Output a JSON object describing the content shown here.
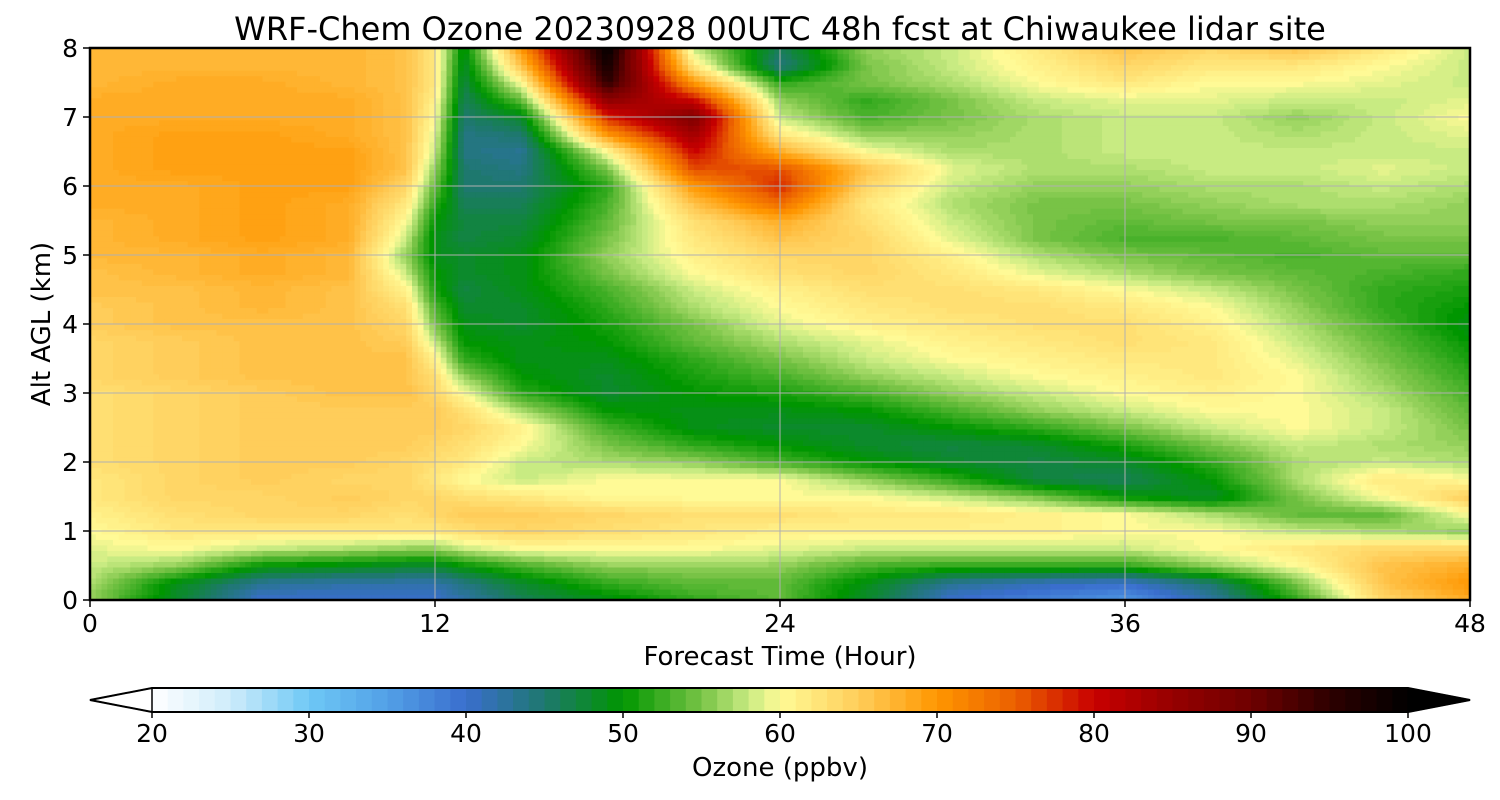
{
  "chart_data": {
    "type": "heatmap",
    "title": "WRF-Chem Ozone  20230928 00UTC 48h fcst at Chiwaukee lidar site",
    "xlabel": "Forecast Time (Hour)",
    "ylabel": "Alt AGL (km)",
    "xlim": [
      0,
      48
    ],
    "ylim": [
      0,
      8
    ],
    "xticks": [
      "0",
      "12",
      "24",
      "36",
      "48"
    ],
    "yticks": [
      "0",
      "1",
      "2",
      "3",
      "4",
      "5",
      "6",
      "7",
      "8"
    ],
    "grid": true,
    "x_hours": [
      0,
      3,
      6,
      9,
      11,
      12,
      13,
      15,
      18,
      21,
      24,
      27,
      30,
      33,
      36,
      39,
      42,
      45,
      48
    ],
    "y_km": [
      0,
      0.25,
      0.5,
      0.75,
      1,
      1.25,
      1.5,
      1.75,
      2,
      2.25,
      2.5,
      2.75,
      3,
      3.25,
      3.5,
      3.75,
      4,
      4.25,
      4.5,
      4.75,
      5,
      5.25,
      5.5,
      5.75,
      6,
      6.25,
      6.5,
      6.75,
      7,
      7.25,
      7.5,
      7.75,
      8
    ],
    "ozone_ppbv": [
      [
        56,
        48,
        40,
        40,
        40,
        40,
        42,
        46,
        49,
        52,
        54,
        48,
        40,
        38,
        36,
        42,
        52,
        64,
        68
      ],
      [
        57,
        49,
        43,
        42,
        42,
        42,
        44,
        48,
        52,
        54,
        54,
        49,
        43,
        41,
        40,
        45,
        55,
        66,
        70
      ],
      [
        58,
        56,
        50,
        49,
        48,
        48,
        50,
        53,
        56,
        56,
        56,
        53,
        52,
        52,
        52,
        56,
        60,
        66,
        68
      ],
      [
        59,
        60,
        58,
        57,
        56,
        56,
        58,
        60,
        60,
        60,
        59,
        58,
        58,
        58,
        58,
        60,
        62,
        64,
        64
      ],
      [
        60,
        62,
        62,
        62,
        62,
        62,
        63,
        64,
        63,
        62,
        61,
        61,
        61,
        61,
        60,
        60,
        58,
        57,
        56
      ],
      [
        61,
        63,
        64,
        64,
        63,
        64,
        65,
        65,
        64,
        63,
        63,
        62,
        62,
        61,
        60,
        57,
        54,
        54,
        60
      ],
      [
        62,
        64,
        64,
        65,
        64,
        64,
        63,
        62,
        60,
        60,
        60,
        60,
        58,
        55,
        50,
        48,
        55,
        60,
        65
      ],
      [
        62,
        64,
        65,
        64,
        64,
        62,
        60,
        58,
        60,
        60,
        60,
        56,
        52,
        47,
        46,
        50,
        57,
        62,
        60
      ],
      [
        63,
        64,
        65,
        65,
        64,
        63,
        62,
        58,
        57,
        56,
        53,
        50,
        48,
        47,
        48,
        52,
        57,
        58,
        57
      ],
      [
        63,
        64,
        65,
        65,
        65,
        64,
        63,
        60,
        55,
        52,
        50,
        48,
        47,
        48,
        51,
        55,
        58,
        57,
        56
      ],
      [
        63,
        64,
        65,
        65,
        65,
        65,
        64,
        61,
        53,
        49,
        48,
        48,
        50,
        52,
        55,
        58,
        60,
        58,
        55
      ],
      [
        63,
        64,
        65,
        65,
        65,
        65,
        63,
        57,
        50,
        49,
        49,
        50,
        53,
        56,
        58,
        60,
        60,
        58,
        54
      ],
      [
        63,
        64,
        65,
        66,
        66,
        64,
        60,
        52,
        48,
        50,
        51,
        53,
        56,
        58,
        60,
        61,
        60,
        57,
        53
      ],
      [
        64,
        65,
        66,
        66,
        66,
        63,
        56,
        50,
        48,
        51,
        53,
        56,
        58,
        60,
        61,
        62,
        60,
        56,
        52
      ],
      [
        64,
        65,
        66,
        66,
        66,
        61,
        52,
        49,
        49,
        52,
        55,
        58,
        60,
        61,
        62,
        62,
        59,
        55,
        51
      ],
      [
        64,
        65,
        66,
        66,
        65,
        58,
        50,
        49,
        50,
        54,
        57,
        59,
        61,
        62,
        63,
        62,
        58,
        54,
        50
      ],
      [
        65,
        66,
        66,
        66,
        64,
        55,
        49,
        48,
        51,
        55,
        59,
        61,
        62,
        63,
        63,
        61,
        57,
        53,
        49
      ],
      [
        65,
        66,
        67,
        66,
        63,
        53,
        48,
        48,
        52,
        57,
        60,
        62,
        63,
        63,
        62,
        60,
        56,
        52,
        50
      ],
      [
        66,
        66,
        67,
        66,
        61,
        51,
        47,
        49,
        53,
        58,
        61,
        63,
        63,
        62,
        60,
        58,
        55,
        52,
        51
      ],
      [
        66,
        67,
        68,
        67,
        58,
        50,
        48,
        49,
        55,
        60,
        63,
        64,
        62,
        59,
        57,
        55,
        54,
        53,
        52
      ],
      [
        67,
        67,
        68,
        67,
        56,
        49,
        48,
        49,
        56,
        61,
        64,
        64,
        61,
        57,
        55,
        54,
        53,
        54,
        54
      ],
      [
        67,
        68,
        69,
        68,
        58,
        49,
        47,
        48,
        55,
        62,
        66,
        64,
        59,
        55,
        53,
        53,
        54,
        55,
        55
      ],
      [
        67,
        68,
        69,
        68,
        60,
        50,
        47,
        47,
        54,
        63,
        68,
        63,
        58,
        55,
        54,
        55,
        55,
        56,
        56
      ],
      [
        68,
        68,
        69,
        68,
        62,
        52,
        46,
        46,
        53,
        66,
        74,
        62,
        57,
        55,
        55,
        56,
        57,
        57,
        56
      ],
      [
        68,
        68,
        69,
        69,
        64,
        54,
        45,
        45,
        52,
        70,
        78,
        64,
        58,
        56,
        56,
        57,
        57,
        58,
        57
      ],
      [
        68,
        69,
        69,
        69,
        66,
        56,
        45,
        44,
        55,
        76,
        76,
        66,
        59,
        57,
        57,
        58,
        58,
        59,
        58
      ],
      [
        68,
        69,
        69,
        69,
        66,
        58,
        44,
        43,
        60,
        80,
        68,
        60,
        57,
        57,
        58,
        58,
        58,
        58,
        58
      ],
      [
        68,
        69,
        69,
        68,
        66,
        59,
        44,
        45,
        70,
        84,
        62,
        56,
        56,
        57,
        58,
        58,
        57,
        58,
        59
      ],
      [
        68,
        68,
        68,
        68,
        66,
        60,
        45,
        48,
        78,
        88,
        58,
        53,
        55,
        57,
        58,
        58,
        56,
        58,
        60
      ],
      [
        68,
        68,
        68,
        68,
        66,
        61,
        46,
        54,
        86,
        80,
        56,
        52,
        55,
        58,
        59,
        59,
        58,
        58,
        59
      ],
      [
        67,
        68,
        68,
        67,
        66,
        62,
        47,
        60,
        95,
        70,
        52,
        55,
        57,
        60,
        62,
        60,
        60,
        59,
        58
      ],
      [
        67,
        67,
        67,
        67,
        66,
        62,
        48,
        66,
        98,
        62,
        44,
        55,
        58,
        61,
        64,
        62,
        62,
        60,
        58
      ],
      [
        67,
        67,
        67,
        67,
        66,
        62,
        49,
        70,
        100,
        58,
        46,
        56,
        58,
        62,
        66,
        64,
        66,
        62,
        58
      ]
    ]
  },
  "colorbar": {
    "label": "Ozone  (ppbv)",
    "ticks": [
      "20",
      "30",
      "40",
      "50",
      "60",
      "70",
      "80",
      "90",
      "100"
    ],
    "min": 20,
    "max": 100,
    "extend": "both"
  }
}
